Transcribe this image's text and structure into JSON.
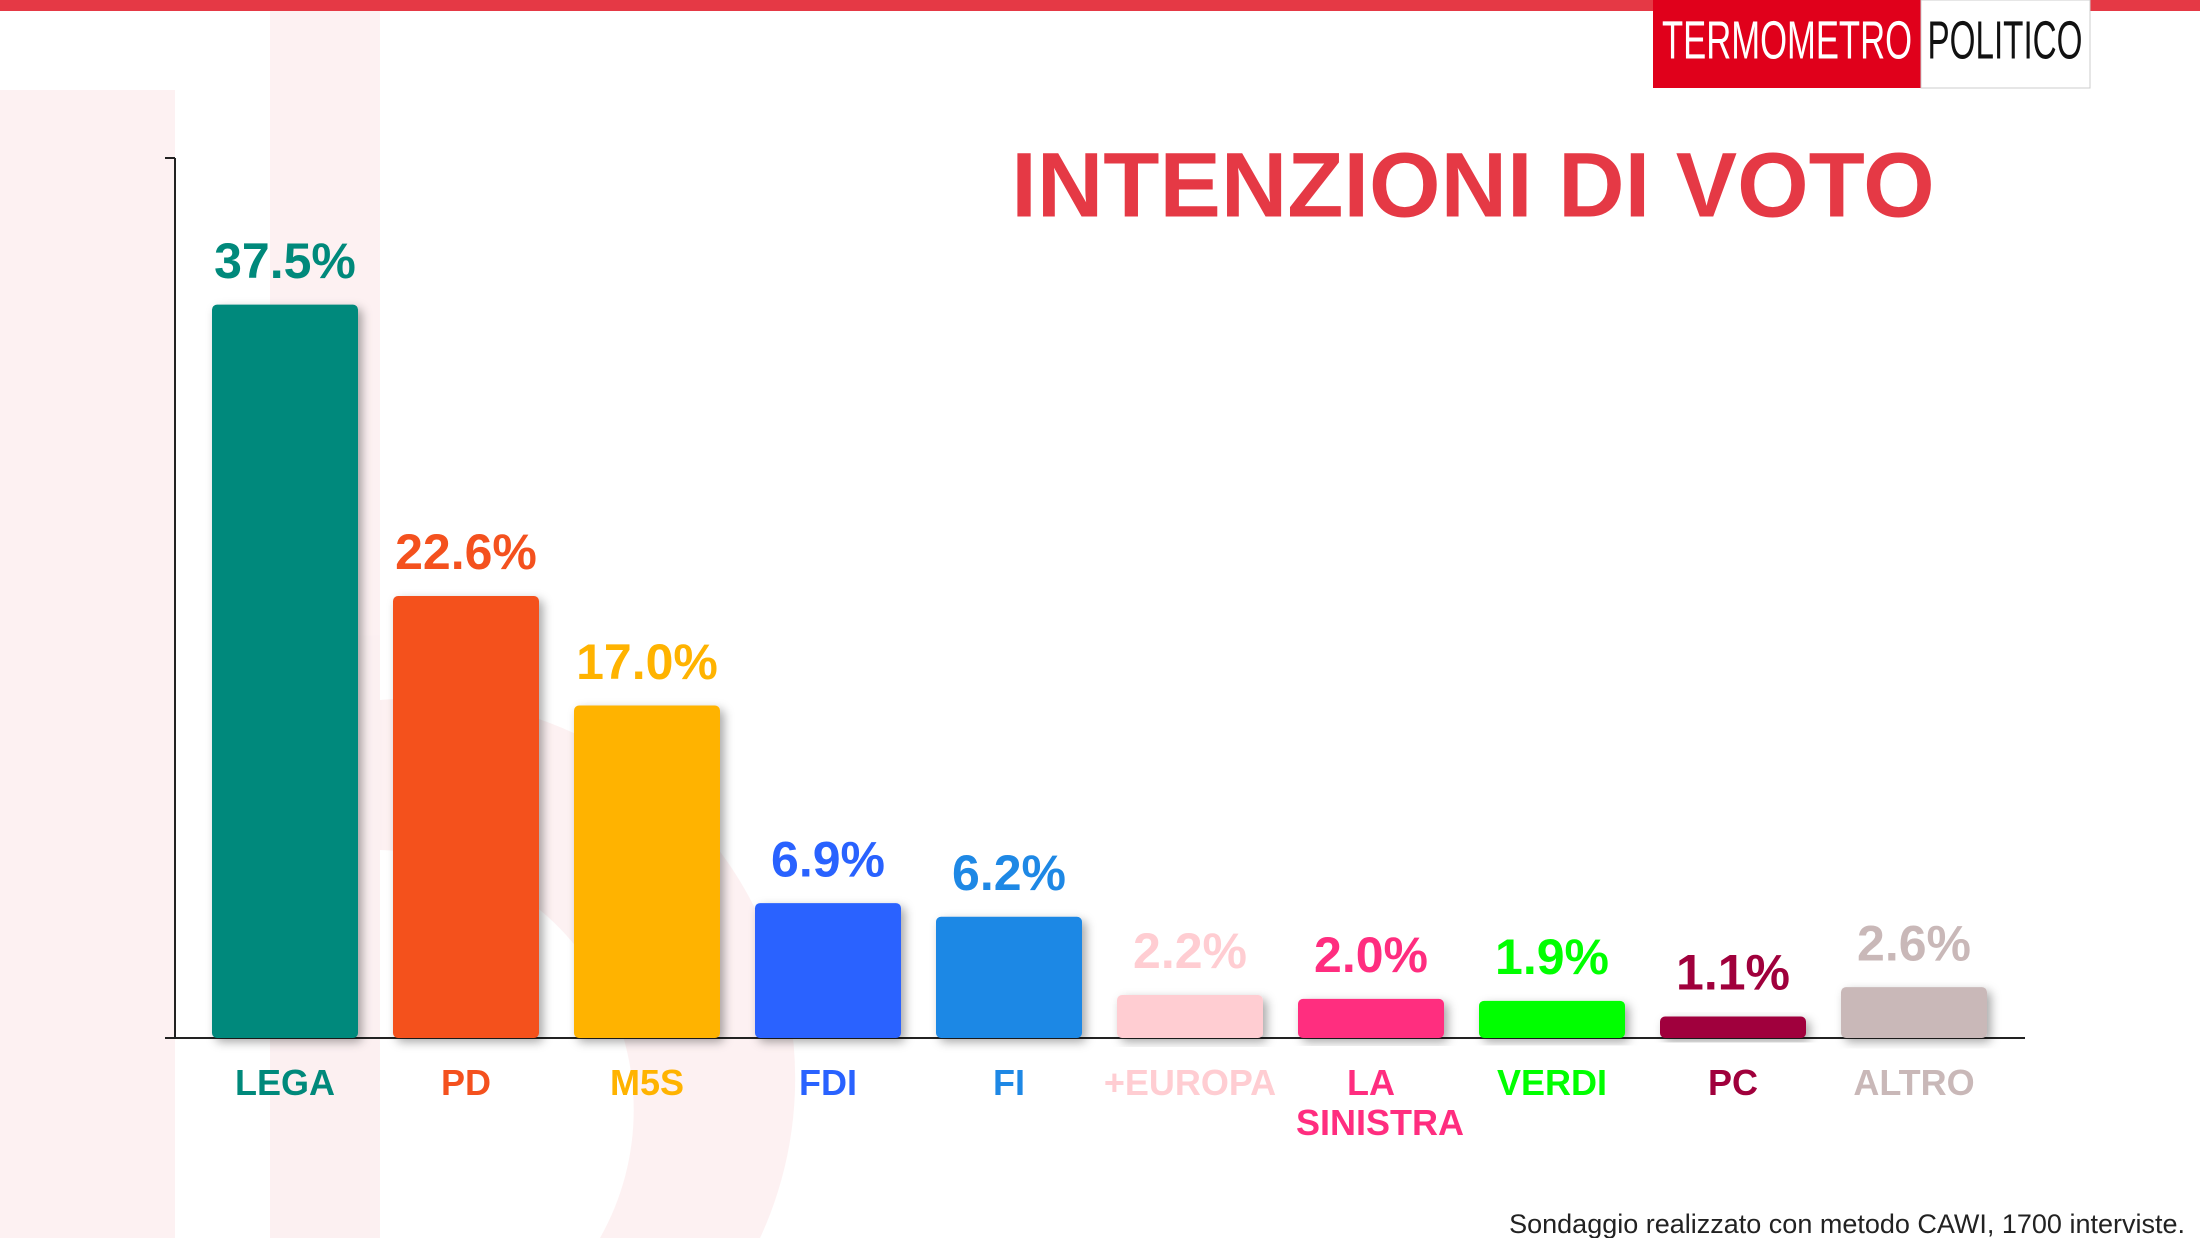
{
  "logo": {
    "left": "TERMOMETRO",
    "right": "POLITICO"
  },
  "chart_data": {
    "type": "bar",
    "title": "INTENZIONI DI VOTO",
    "categories": [
      "LEGA",
      "PD",
      "M5S",
      "FDI",
      "FI",
      "+EUROPA",
      "LA SINISTRA",
      "VERDI",
      "PC",
      "ALTRO"
    ],
    "values": [
      37.5,
      22.6,
      17.0,
      6.9,
      6.2,
      2.2,
      2.0,
      1.9,
      1.1,
      2.6
    ],
    "value_labels": [
      "37.5%",
      "22.6%",
      "17.0%",
      "6.9%",
      "6.2%",
      "2.2%",
      "2.0%",
      "1.9%",
      "1.1%",
      "2.6%"
    ],
    "colors": [
      "#00897b",
      "#f4511e",
      "#ffb300",
      "#2962ff",
      "#1e88e5",
      "#ffcdd2",
      "#ff2d7f",
      "#00ff00",
      "#a0003c",
      "#c9b8b8"
    ],
    "ylim": [
      0,
      45
    ],
    "footnote": "Sondaggio realizzato con metodo CAWI, 1700 interviste."
  }
}
